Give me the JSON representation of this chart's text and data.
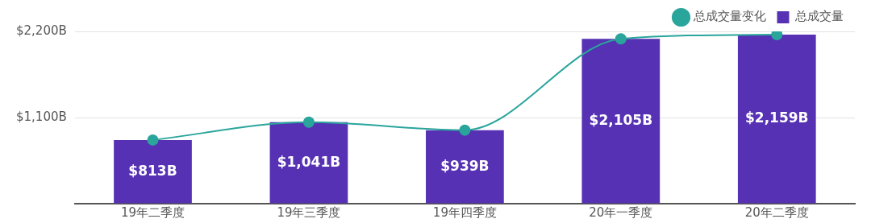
{
  "chart_data": {
    "type": "bar",
    "categories": [
      "19年二季度",
      "19年三季度",
      "19年四季度",
      "20年一季度",
      "20年二季度"
    ],
    "series": [
      {
        "name": "总成交量变化",
        "type": "line",
        "color": "#2aa59c",
        "values": [
          813,
          1041,
          939,
          2105,
          2159
        ]
      },
      {
        "name": "总成交量",
        "color": "#5631b3",
        "values": [
          813,
          1041,
          939,
          2105,
          2159
        ],
        "value_labels": [
          "$813B",
          "$1,041B",
          "$939B",
          "$2,105B",
          "$2,159B"
        ]
      }
    ],
    "ylim": [
      0,
      2200
    ],
    "yticks": [
      {
        "value": 0,
        "label": null
      },
      {
        "value": 1100,
        "label": "$1,100B"
      },
      {
        "value": 2200,
        "label": "$2,200B"
      }
    ],
    "grid": "y",
    "legend": "top right",
    "marker": "circle"
  }
}
